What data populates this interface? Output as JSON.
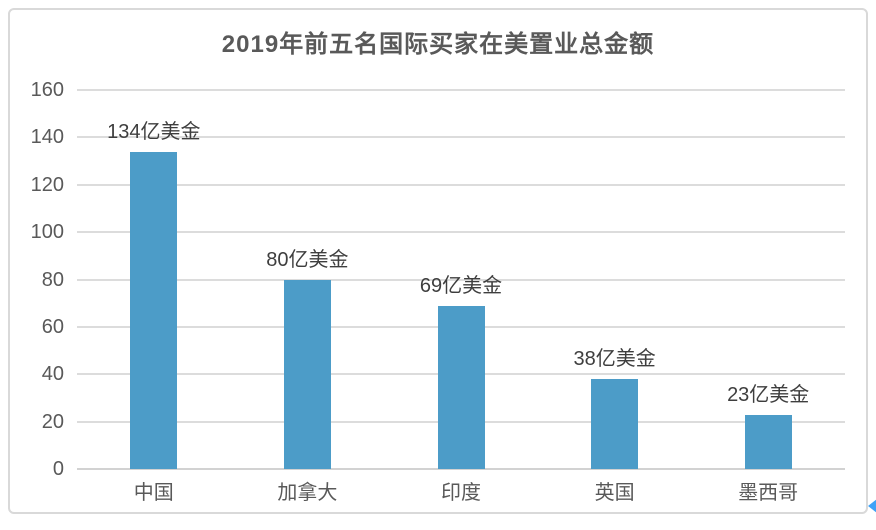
{
  "chart_data": {
    "type": "bar",
    "title": "2019年前五名国际买家在美置业总金额",
    "categories": [
      "中国",
      "加拿大",
      "印度",
      "英国",
      "墨西哥"
    ],
    "values": [
      134,
      80,
      69,
      38,
      23
    ],
    "value_labels": [
      "134亿美金",
      "80亿美金",
      "69亿美金",
      "38亿美金",
      "23亿美金"
    ],
    "unit_suffix": "亿美金",
    "xlabel": "",
    "ylabel": "",
    "ylim": [
      0,
      160
    ],
    "yticks": [
      0,
      20,
      40,
      60,
      80,
      100,
      120,
      140,
      160
    ],
    "grid": true,
    "legend_position": "none",
    "bar_color": "#4C9CC8"
  },
  "colors": {
    "title_text": "#595959",
    "axis_text": "#595959",
    "value_label_text": "#3E3E3E",
    "gridline": "#DCDCDC",
    "card_border": "#D9D9D9",
    "edge_arrow": "#3FA2F7"
  },
  "icons": {
    "edge_arrow": "blue-left-arrow"
  }
}
